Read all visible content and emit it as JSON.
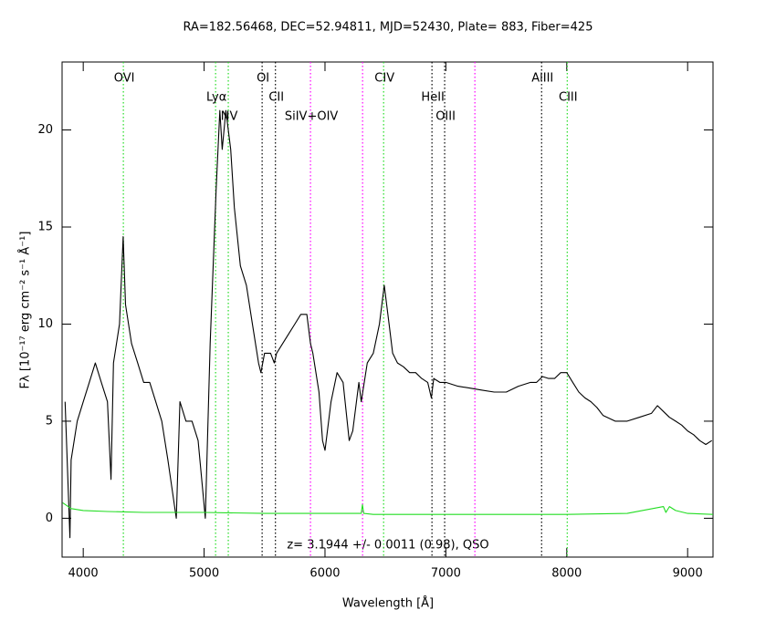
{
  "chart_data": {
    "type": "line",
    "title": "RA=182.56468, DEC=52.94811, MJD=52430, Plate= 883, Fiber=425",
    "x_label": "Wavelength [Å]",
    "y_label": "Fλ [10⁻¹⁷ erg cm⁻² s⁻¹ Å⁻¹]",
    "annotation": "z= 3.1944 +/- 0.0011 (0.98), QSO",
    "xlim": [
      3825,
      9210
    ],
    "ylim": [
      -2,
      23.5
    ],
    "xticks": [
      4000,
      5000,
      6000,
      7000,
      8000,
      9000
    ],
    "yticks": [
      0,
      5,
      10,
      15,
      20
    ],
    "series": [
      {
        "color": "#000000",
        "x": [
          3850,
          3890,
          3900,
          3950,
          4000,
          4050,
          4100,
          4150,
          4200,
          4230,
          4250,
          4300,
          4330,
          4350,
          4400,
          4450,
          4500,
          4550,
          4600,
          4650,
          4700,
          4770,
          4800,
          4850,
          4900,
          4950,
          5010,
          5050,
          5100,
          5130,
          5150,
          5180,
          5220,
          5250,
          5300,
          5350,
          5400,
          5450,
          5470,
          5500,
          5550,
          5580,
          5600,
          5650,
          5700,
          5750,
          5800,
          5850,
          5880,
          5900,
          5950,
          5980,
          6000,
          6050,
          6100,
          6150,
          6200,
          6230,
          6280,
          6300,
          6350,
          6400,
          6450,
          6490,
          6530,
          6560,
          6600,
          6650,
          6700,
          6750,
          6800,
          6850,
          6880,
          6900,
          6950,
          7000,
          7100,
          7200,
          7300,
          7400,
          7500,
          7600,
          7700,
          7750,
          7800,
          7850,
          7900,
          7950,
          8000,
          8050,
          8100,
          8150,
          8200,
          8250,
          8300,
          8400,
          8500,
          8600,
          8700,
          8750,
          8800,
          8850,
          8900,
          8950,
          9000,
          9050,
          9100,
          9150,
          9200
        ],
        "values": [
          6,
          -1,
          3,
          5,
          6,
          7,
          8,
          7,
          6,
          2,
          8,
          10,
          14.5,
          11,
          9,
          8,
          7,
          7,
          6,
          5,
          3,
          0,
          6,
          5,
          5,
          4,
          0,
          9,
          17,
          21,
          19,
          21,
          19,
          16,
          13,
          12,
          10,
          8,
          7.5,
          8.5,
          8.5,
          8,
          8.5,
          9,
          9.5,
          10,
          10.5,
          10.5,
          9,
          8.5,
          6.5,
          4,
          3.5,
          6,
          7.5,
          7,
          4,
          4.5,
          7,
          6,
          8,
          8.5,
          10,
          12,
          10,
          8.5,
          8,
          7.8,
          7.5,
          7.5,
          7.2,
          7,
          6.2,
          7.2,
          7,
          7,
          6.8,
          6.7,
          6.6,
          6.5,
          6.5,
          6.8,
          7,
          7,
          7.3,
          7.2,
          7.2,
          7.5,
          7.5,
          7,
          6.5,
          6.2,
          6,
          5.7,
          5.3,
          5,
          5,
          5.2,
          5.4,
          5.8,
          5.5,
          5.2,
          5,
          4.8,
          4.5,
          4.3,
          4,
          3.8,
          4
        ]
      },
      {
        "color": "#22dd22",
        "x": [
          3830,
          3900,
          4000,
          4200,
          4500,
          5000,
          5500,
          6000,
          6300,
          6310,
          6320,
          6400,
          7000,
          8000,
          8500,
          8800,
          8820,
          8850,
          8900,
          9000,
          9210
        ],
        "values": [
          0.8,
          0.5,
          0.4,
          0.35,
          0.3,
          0.3,
          0.25,
          0.25,
          0.25,
          0.7,
          0.25,
          0.2,
          0.2,
          0.2,
          0.25,
          0.6,
          0.3,
          0.6,
          0.4,
          0.25,
          0.2
        ]
      }
    ],
    "lines": [
      {
        "label": "OVI",
        "x": 4332,
        "color": "#22dd22"
      },
      {
        "label": "Lyα",
        "x": 5095,
        "color": "#22dd22"
      },
      {
        "label": "NV",
        "x": 5200,
        "color": "#22dd22"
      },
      {
        "label": "OI",
        "x": 5480,
        "color": "#000000"
      },
      {
        "label": "CII",
        "x": 5590,
        "color": "#000000"
      },
      {
        "label": "SiIV+OIV",
        "x": 5880,
        "color": "#ff00ff"
      },
      {
        "label": null,
        "x": 6311,
        "color": "#ff00ff"
      },
      {
        "label": "CIV",
        "x": 6485,
        "color": "#22dd22"
      },
      {
        "label": "HeII",
        "x": 6885,
        "color": "#000000"
      },
      {
        "label": "OIII",
        "x": 6990,
        "color": "#000000"
      },
      {
        "label": null,
        "x": 7240,
        "color": "#ff00ff"
      },
      {
        "label": "AlIII",
        "x": 7792,
        "color": "#000000"
      },
      {
        "label": "CIII",
        "x": 8004,
        "color": "#22dd22"
      }
    ]
  }
}
